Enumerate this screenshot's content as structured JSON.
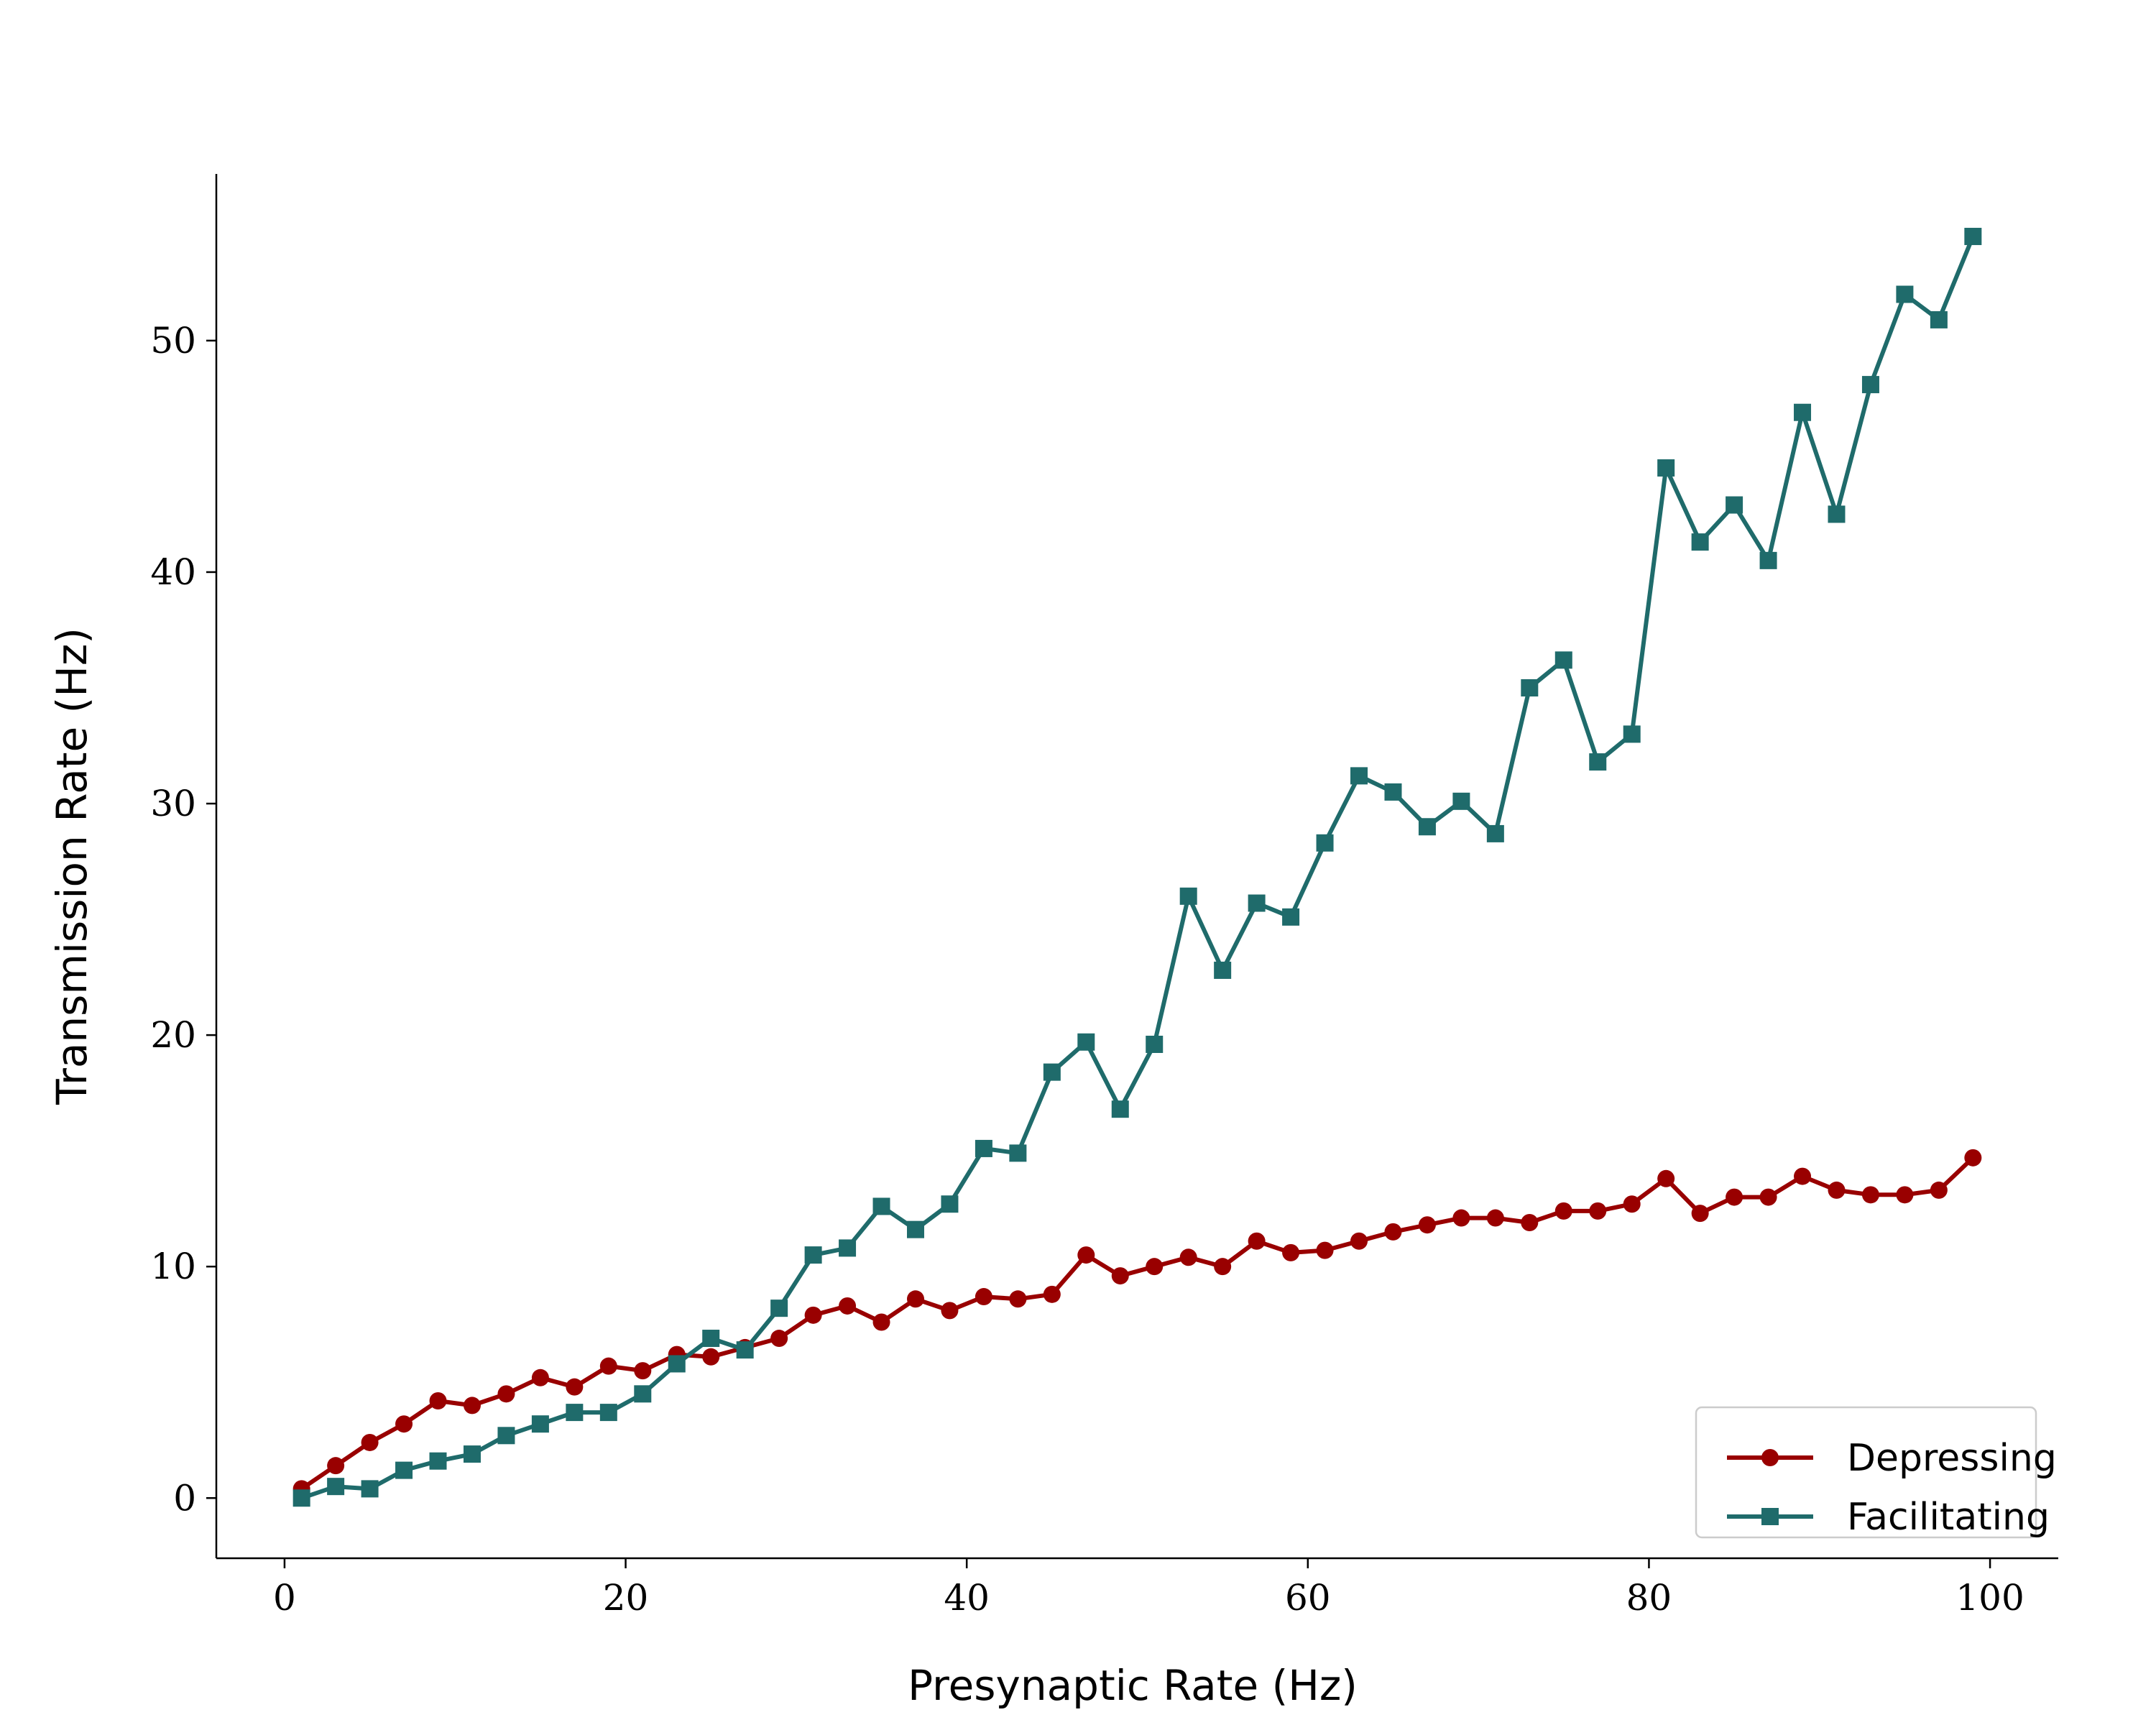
{
  "chart_data": {
    "type": "line",
    "xlabel": "Presynaptic Rate (Hz)",
    "ylabel": "Transmission Rate (Hz)",
    "xlim": [
      -4,
      104
    ],
    "ylim": [
      -2.6,
      57.2
    ],
    "xticks": [
      0,
      20,
      40,
      60,
      80,
      100
    ],
    "yticks": [
      0,
      10,
      20,
      30,
      40,
      50
    ],
    "grid": false,
    "legend_position": "lower-right",
    "x": [
      1,
      3,
      5,
      7,
      9,
      11,
      13,
      15,
      17,
      19,
      21,
      23,
      25,
      27,
      29,
      31,
      33,
      35,
      37,
      39,
      41,
      43,
      45,
      47,
      49,
      51,
      53,
      55,
      57,
      59,
      61,
      63,
      65,
      67,
      69,
      71,
      73,
      75,
      77,
      79,
      81,
      83,
      85,
      87,
      89,
      91,
      93,
      95,
      97,
      99
    ],
    "series": [
      {
        "name": "Depressing",
        "color": "#990000",
        "marker": "circle",
        "values": [
          0.4,
          1.4,
          2.4,
          3.2,
          4.2,
          4.0,
          4.5,
          5.2,
          4.8,
          5.7,
          5.5,
          6.2,
          6.1,
          6.5,
          6.9,
          7.9,
          8.3,
          7.6,
          8.6,
          8.1,
          8.7,
          8.6,
          8.8,
          10.5,
          9.6,
          10.0,
          10.4,
          10.0,
          11.1,
          10.6,
          10.7,
          11.1,
          11.5,
          11.8,
          12.1,
          12.1,
          11.9,
          12.4,
          12.4,
          12.7,
          13.8,
          12.3,
          13.0,
          13.0,
          13.9,
          13.3,
          13.1,
          13.1,
          13.3,
          14.7
        ]
      },
      {
        "name": "Facilitating",
        "color": "#1f6b6b",
        "marker": "square",
        "values": [
          0.0,
          0.5,
          0.4,
          1.2,
          1.6,
          1.9,
          2.7,
          3.2,
          3.7,
          3.7,
          4.5,
          5.8,
          6.9,
          6.4,
          8.2,
          10.5,
          10.8,
          12.6,
          11.6,
          12.7,
          15.1,
          14.9,
          18.4,
          19.7,
          16.8,
          19.6,
          26.0,
          22.8,
          25.7,
          25.1,
          28.3,
          31.2,
          30.5,
          29.0,
          30.1,
          28.7,
          35.0,
          36.2,
          31.8,
          33.0,
          44.5,
          41.3,
          42.9,
          40.5,
          46.9,
          42.5,
          48.1,
          52.0,
          50.9,
          54.5
        ]
      }
    ]
  }
}
